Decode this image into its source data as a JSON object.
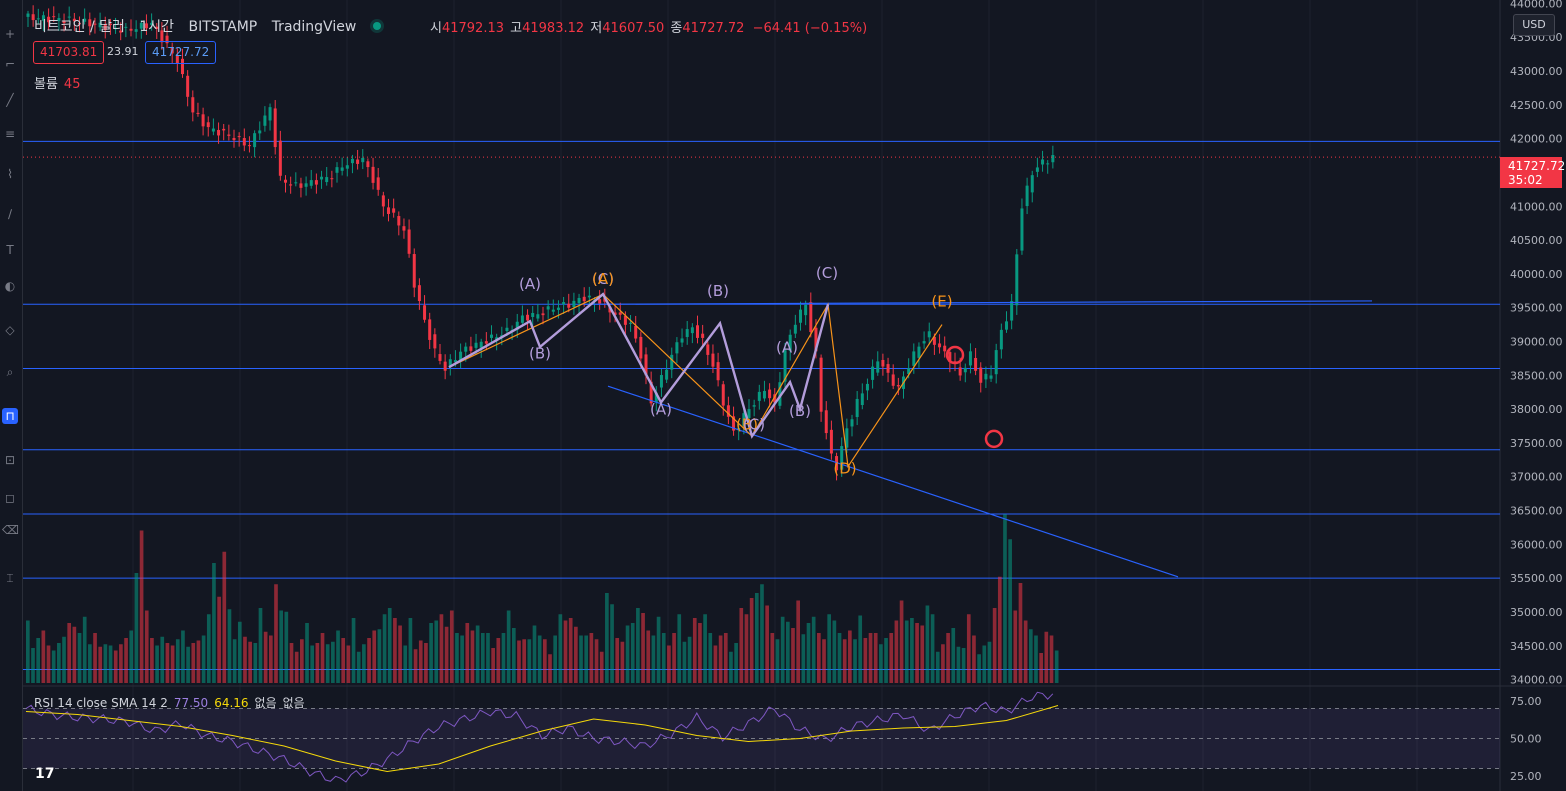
{
  "header": {
    "symbol": "비트코인 / 달러",
    "interval": "1시간",
    "exchange": "BITSTAMP",
    "source": "TradingView",
    "ohlc": [
      {
        "k": "시",
        "v": "41792.13"
      },
      {
        "k": "고",
        "v": "41983.12"
      },
      {
        "k": "저",
        "v": "41607.50"
      },
      {
        "k": "종",
        "v": "41727.72"
      }
    ],
    "change": "−64.41 (−0.15%)"
  },
  "trade": {
    "sell": "41703.81",
    "spread": "23.91",
    "buy": "41727.72"
  },
  "volume_legend": {
    "label": "볼륨",
    "value": "45"
  },
  "rsi_legend": {
    "label": "RSI 14 close SMA 14 2",
    "rsi": "77.50",
    "sma": "64.16",
    "extra1": "없음",
    "extra2": "없음"
  },
  "price_scale": {
    "currency": "USD",
    "last_price": "41727.72",
    "countdown": "35:02"
  },
  "logo": "17",
  "colors": {
    "up": "#089981",
    "down": "#f23645",
    "line": "#2962ff",
    "wave_purple": "#b39ddb",
    "wave_orange": "#f7931a",
    "rsi": "#7e57c2",
    "rsi_sma": "#f5d90a"
  },
  "chart_data": {
    "type": "candlestick",
    "price_axis_ticks": [
      "44000.00",
      "43500.00",
      "43000.00",
      "42500.00",
      "42000.00",
      "41500.00",
      "41000.00",
      "40500.00",
      "40000.00",
      "39500.00",
      "39000.00",
      "38500.00",
      "38000.00",
      "37500.00",
      "37000.00",
      "36500.00",
      "36000.00",
      "35500.00",
      "35000.00",
      "34500.00",
      "34000.00"
    ],
    "price_range": [
      33950,
      44050
    ],
    "rsi_axis_ticks": [
      "75.00",
      "50.00",
      "25.00"
    ],
    "rsi_band": [
      30,
      70
    ],
    "close_path": [
      [
        0,
        43800
      ],
      [
        10,
        43750
      ],
      [
        20,
        43600
      ],
      [
        25,
        43700
      ],
      [
        30,
        43150
      ],
      [
        33,
        42400
      ],
      [
        36,
        42150
      ],
      [
        40,
        42050
      ],
      [
        44,
        41900
      ],
      [
        48,
        42450
      ],
      [
        50,
        41400
      ],
      [
        53,
        41300
      ],
      [
        56,
        41350
      ],
      [
        60,
        41450
      ],
      [
        62,
        41600
      ],
      [
        66,
        41700
      ],
      [
        68,
        41400
      ],
      [
        70,
        41000
      ],
      [
        72,
        40850
      ],
      [
        74,
        40650
      ],
      [
        76,
        39850
      ],
      [
        78,
        39300
      ],
      [
        80,
        38850
      ],
      [
        82,
        38600
      ],
      [
        85,
        38850
      ],
      [
        88,
        38950
      ],
      [
        91,
        39050
      ],
      [
        94,
        39150
      ],
      [
        97,
        39350
      ],
      [
        100,
        39400
      ],
      [
        103,
        39500
      ],
      [
        106,
        39550
      ],
      [
        109,
        39650
      ],
      [
        112,
        39600
      ],
      [
        115,
        39400
      ],
      [
        118,
        39250
      ],
      [
        120,
        38800
      ],
      [
        122,
        38100
      ],
      [
        124,
        38450
      ],
      [
        126,
        38800
      ],
      [
        128,
        39100
      ],
      [
        130,
        39200
      ],
      [
        132,
        39000
      ],
      [
        134,
        38650
      ],
      [
        136,
        38100
      ],
      [
        138,
        37650
      ],
      [
        140,
        37900
      ],
      [
        142,
        38100
      ],
      [
        144,
        38300
      ],
      [
        146,
        38050
      ],
      [
        148,
        38850
      ],
      [
        150,
        39300
      ],
      [
        152,
        39550
      ],
      [
        154,
        38800
      ],
      [
        155,
        38000
      ],
      [
        157,
        37300
      ],
      [
        158,
        37150
      ],
      [
        160,
        37700
      ],
      [
        162,
        38100
      ],
      [
        164,
        38400
      ],
      [
        166,
        38750
      ],
      [
        168,
        38500
      ],
      [
        170,
        38300
      ],
      [
        172,
        38650
      ],
      [
        174,
        38950
      ],
      [
        176,
        39100
      ],
      [
        178,
        38900
      ],
      [
        180,
        38750
      ],
      [
        182,
        38500
      ],
      [
        184,
        38800
      ],
      [
        186,
        38400
      ],
      [
        188,
        38550
      ],
      [
        190,
        39150
      ],
      [
        192,
        39550
      ],
      [
        193,
        40300
      ],
      [
        194,
        41000
      ],
      [
        196,
        41500
      ],
      [
        198,
        41650
      ],
      [
        200,
        41727
      ]
    ],
    "volume_bars": [
      50,
      28,
      36,
      42,
      30,
      26,
      32,
      37,
      48,
      45,
      40,
      53,
      31,
      40,
      29,
      31,
      30,
      26,
      31,
      36,
      42,
      88,
      122,
      58,
      36,
      30,
      37,
      32,
      30,
      35,
      42,
      29,
      32,
      34,
      38,
      55,
      96,
      69,
      105,
      59,
      35,
      49,
      37,
      33,
      32,
      60,
      41,
      38,
      79,
      58,
      57,
      32,
      25,
      35,
      48,
      30,
      32,
      40,
      31,
      33,
      42,
      36,
      30,
      52,
      25,
      31,
      36,
      42,
      43,
      55,
      60,
      52,
      46,
      30,
      52,
      27,
      34,
      32,
      48,
      50,
      55,
      45,
      58,
      40,
      38,
      48,
      42,
      46,
      40,
      40,
      28,
      36,
      40,
      58,
      44,
      34,
      35,
      35,
      46,
      38,
      35,
      23,
      38,
      55,
      50,
      52,
      45,
      38,
      38,
      40,
      35,
      25,
      72,
      63,
      36,
      33,
      46,
      48,
      60,
      56,
      42,
      38,
      53,
      40,
      30,
      40,
      55,
      33,
      37,
      52,
      48,
      55,
      40,
      30,
      38,
      40,
      25,
      32,
      60,
      55,
      68,
      72,
      79,
      62,
      40,
      35,
      53,
      49,
      44,
      66,
      39,
      48,
      53,
      40,
      35,
      55,
      50,
      40,
      35,
      42,
      35,
      54,
      36,
      40,
      40,
      31,
      36,
      40,
      50,
      66,
      50,
      52,
      48,
      46,
      62,
      55,
      25,
      31,
      40,
      44,
      29,
      28,
      55,
      38,
      23,
      30,
      33,
      60,
      85,
      135,
      115,
      58,
      80,
      50,
      43,
      38,
      24,
      41,
      38,
      26
    ],
    "rsi_series": [
      [
        0,
        70
      ],
      [
        10,
        66
      ],
      [
        20,
        64
      ],
      [
        30,
        63
      ],
      [
        40,
        61
      ],
      [
        50,
        55
      ],
      [
        60,
        60
      ],
      [
        70,
        52
      ],
      [
        80,
        48
      ],
      [
        90,
        42
      ],
      [
        100,
        36
      ],
      [
        110,
        28
      ],
      [
        120,
        22
      ],
      [
        130,
        27
      ],
      [
        140,
        36
      ],
      [
        150,
        48
      ],
      [
        160,
        58
      ],
      [
        170,
        63
      ],
      [
        180,
        68
      ],
      [
        190,
        65
      ],
      [
        200,
        52
      ],
      [
        210,
        57
      ],
      [
        220,
        50
      ],
      [
        230,
        48
      ],
      [
        240,
        45
      ],
      [
        250,
        53
      ],
      [
        260,
        64
      ],
      [
        270,
        51
      ],
      [
        280,
        60
      ],
      [
        290,
        70
      ],
      [
        300,
        56
      ],
      [
        310,
        49
      ],
      [
        320,
        58
      ],
      [
        330,
        62
      ],
      [
        340,
        66
      ],
      [
        350,
        55
      ],
      [
        360,
        65
      ],
      [
        370,
        72
      ],
      [
        380,
        68
      ],
      [
        390,
        78
      ],
      [
        400,
        80
      ]
    ],
    "rsi_sma_series": [
      [
        0,
        68
      ],
      [
        20,
        66
      ],
      [
        40,
        62
      ],
      [
        60,
        58
      ],
      [
        80,
        52
      ],
      [
        100,
        45
      ],
      [
        120,
        35
      ],
      [
        140,
        28
      ],
      [
        160,
        33
      ],
      [
        180,
        45
      ],
      [
        200,
        55
      ],
      [
        220,
        63
      ],
      [
        240,
        59
      ],
      [
        260,
        52
      ],
      [
        280,
        48
      ],
      [
        300,
        50
      ],
      [
        320,
        55
      ],
      [
        340,
        57
      ],
      [
        360,
        58
      ],
      [
        380,
        62
      ],
      [
        400,
        72
      ]
    ],
    "horizontal_levels": [
      41960,
      39550,
      38600,
      37400,
      36450,
      35500,
      34150
    ],
    "trendlines": [
      {
        "from": [
          584,
          39550
        ],
        "to": [
          1372,
          39600
        ]
      },
      {
        "from": [
          608,
          38340
        ],
        "to": [
          1178,
          35520
        ]
      }
    ],
    "wave_labels": [
      {
        "text": "(A)",
        "x": 530,
        "p": 39780,
        "c": "purple"
      },
      {
        "text": "(B)",
        "x": 540,
        "p": 38750,
        "c": "purple"
      },
      {
        "text": "(C)",
        "x": 603,
        "p": 39850,
        "c": "purple"
      },
      {
        "text": "(A)",
        "x": 603,
        "p": 39850,
        "c": "orange"
      },
      {
        "text": "(A)",
        "x": 661,
        "p": 37920,
        "c": "purple"
      },
      {
        "text": "(B)",
        "x": 718,
        "p": 39670,
        "c": "purple"
      },
      {
        "text": "(B)",
        "x": 747,
        "p": 37700,
        "c": "orange"
      },
      {
        "text": "(C)",
        "x": 754,
        "p": 37700,
        "c": "purple"
      },
      {
        "text": "(A)",
        "x": 787,
        "p": 38840,
        "c": "purple"
      },
      {
        "text": "(B)",
        "x": 800,
        "p": 37900,
        "c": "purple"
      },
      {
        "text": "(C)",
        "x": 827,
        "p": 39940,
        "c": "purple"
      },
      {
        "text": "(D)",
        "x": 845,
        "p": 37050,
        "c": "orange"
      },
      {
        "text": "(E)",
        "x": 942,
        "p": 39520,
        "c": "orange"
      }
    ]
  }
}
